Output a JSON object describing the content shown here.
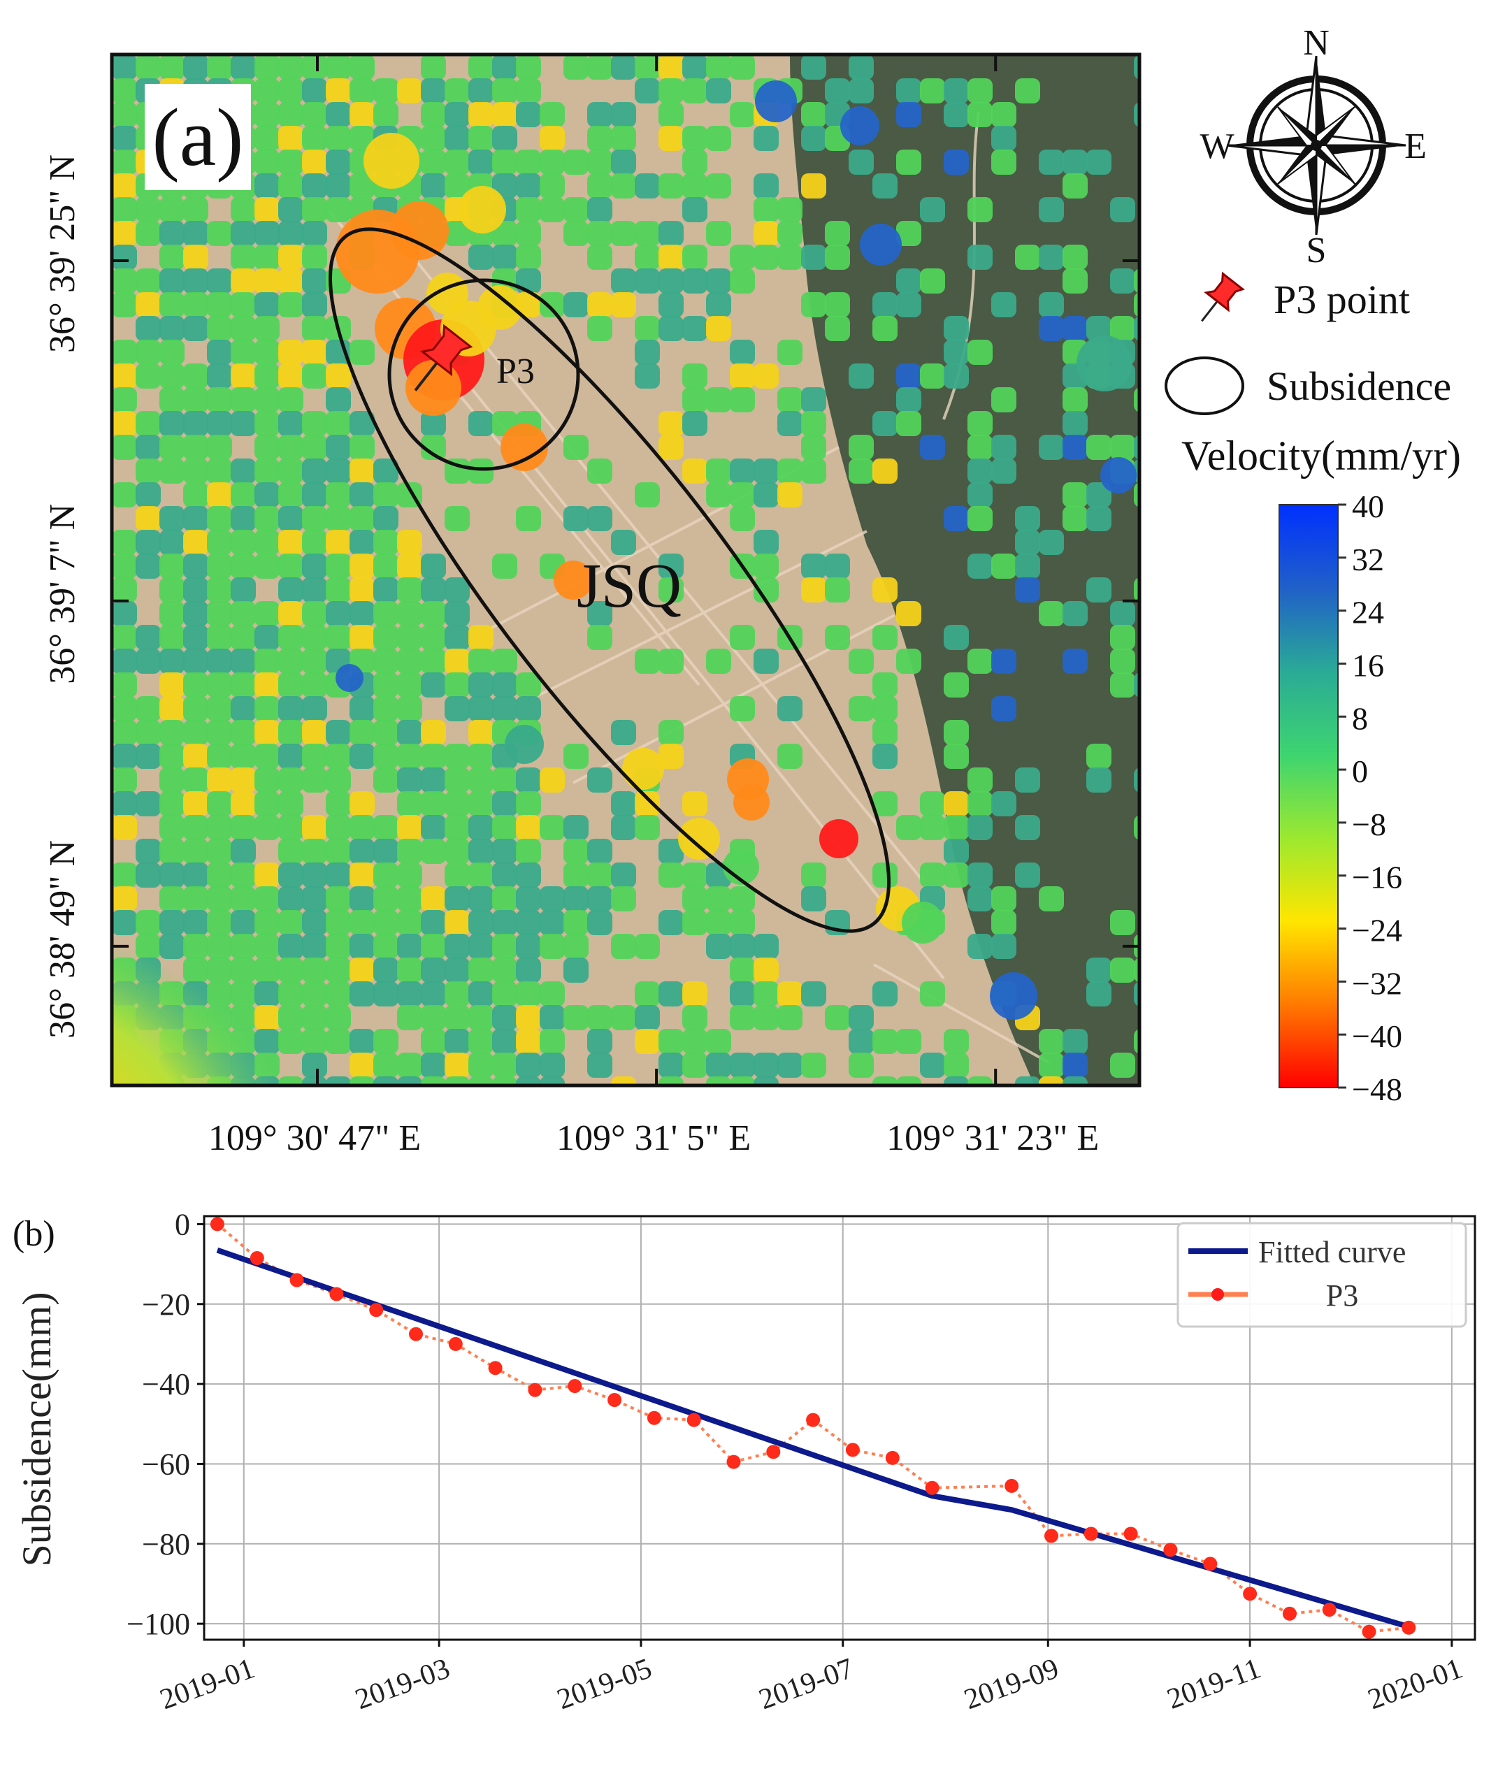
{
  "panel_a": {
    "panel_label": "(a)",
    "area_label": "JSQ",
    "point_label": "P3",
    "lat_ticks": [
      {
        "label": "36° 39' 25\" N",
        "frac": 0.2
      },
      {
        "label": "36° 39' 7\" N",
        "frac": 0.53
      },
      {
        "label": "36° 38' 49\" N",
        "frac": 0.865
      }
    ],
    "lon_ticks": [
      {
        "label": "109° 30' 47\" E",
        "frac": 0.2
      },
      {
        "label": "109° 31' 5\" E",
        "frac": 0.53
      },
      {
        "label": "109° 31' 23\" E",
        "frac": 0.86
      }
    ],
    "compass": {
      "n": "N",
      "s": "S",
      "e": "E",
      "w": "W"
    },
    "legend": {
      "p3": "P3 point",
      "subsidence": "Subsidence",
      "velocity_title": "Velocity(mm/yr)"
    },
    "colorbar": {
      "min": -48,
      "max": 40,
      "ticks": [
        "40",
        "32",
        "24",
        "16",
        "8",
        "0",
        "−8",
        "−16",
        "−24",
        "−32",
        "−40",
        "−48"
      ],
      "colors": [
        "#ff0000",
        "#ff7a00",
        "#ffe600",
        "#9be830",
        "#3ed470",
        "#2aaa96",
        "#2060c8",
        "#0030ff"
      ]
    },
    "colors": {
      "ground": "#cfb79a",
      "forest": "#4a5a44",
      "green": "#52d35a",
      "teal": "#3aaa8a",
      "yellow": "#f4d21a",
      "orange": "#ff8a1a",
      "red": "#ff1a1a",
      "blue": "#2565c8",
      "pin": "#ff2a2a"
    }
  },
  "panel_b": {
    "panel_label": "(b)",
    "chart_data": {
      "type": "line",
      "xlabel": "",
      "ylabel": "Subsidence(mm)",
      "ylim": [
        -104,
        2
      ],
      "yticks": [
        0,
        -20,
        -40,
        -60,
        -80,
        -100
      ],
      "ytick_labels": [
        "0",
        "−20",
        "−40",
        "−60",
        "−80",
        "−100"
      ],
      "xlim_days": [
        -12,
        372
      ],
      "xticks": [
        {
          "label": "2019-01",
          "day": 0
        },
        {
          "label": "2019-03",
          "day": 59
        },
        {
          "label": "2019-05",
          "day": 120
        },
        {
          "label": "2019-07",
          "day": 181
        },
        {
          "label": "2019-09",
          "day": 243
        },
        {
          "label": "2019-11",
          "day": 304
        },
        {
          "label": "2020-01",
          "day": 365
        }
      ],
      "grid": true,
      "legend_position": "top-right",
      "series": [
        {
          "name": "Fitted curve",
          "color": "#0c1a8c",
          "style": "solid",
          "x_days": [
            -8,
            208,
            232,
            353
          ],
          "values": [
            -6.5,
            -68,
            -71.5,
            -101
          ]
        },
        {
          "name": "P3",
          "color": "#ff2a1a",
          "line_color": "#ff7f50",
          "style": "dotted-markers",
          "x_days": [
            -8,
            4,
            16,
            28,
            40,
            52,
            64,
            76,
            88,
            100,
            112,
            124,
            136,
            148,
            160,
            172,
            184,
            196,
            208,
            232,
            244,
            256,
            268,
            280,
            292,
            304,
            316,
            328,
            340,
            352
          ],
          "values": [
            0,
            -8.5,
            -14,
            -17.5,
            -21.5,
            -27.5,
            -30,
            -36,
            -41.5,
            -40.5,
            -44,
            -48.5,
            -49,
            -59.5,
            -57,
            -49,
            -56.5,
            -58.5,
            -66,
            -65.5,
            -78,
            -77.5,
            -77.5,
            -81.5,
            -85,
            -92.5,
            -97.5,
            -96.5,
            -102,
            -101
          ]
        }
      ]
    }
  }
}
